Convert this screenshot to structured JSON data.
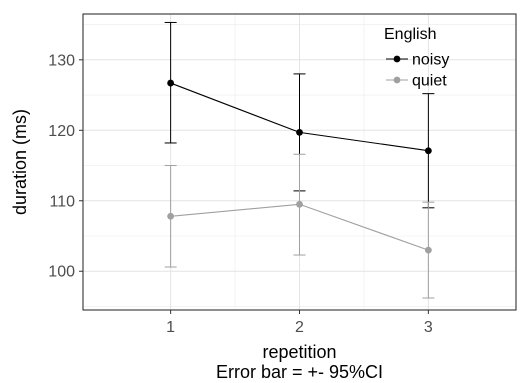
{
  "chart_data": {
    "type": "line",
    "x": [
      1,
      2,
      3
    ],
    "xlim": [
      0.32,
      3.68
    ],
    "ylim": [
      94.5,
      136.5
    ],
    "x_ticks": [
      "1",
      "2",
      "3"
    ],
    "y_ticks": [
      100,
      110,
      120,
      130
    ],
    "y_tick_labels": [
      "100",
      "110",
      "120",
      "130"
    ],
    "xlabel": "repetition",
    "xlabel2": "Error bar = +- 95%CI",
    "ylabel": "duration (ms)",
    "grid": true,
    "legend_title": "English",
    "legend_position": "top-right-inside",
    "series": [
      {
        "name": "noisy",
        "color": "#000000",
        "values": [
          126.7,
          119.7,
          117.1
        ],
        "ci_low": [
          118.2,
          111.4,
          109.0
        ],
        "ci_high": [
          135.3,
          128.0,
          125.2
        ]
      },
      {
        "name": "quiet",
        "color": "#a0a0a0",
        "values": [
          107.8,
          109.5,
          103.0
        ],
        "ci_low": [
          100.6,
          102.3,
          96.2
        ],
        "ci_high": [
          115.0,
          116.6,
          109.8
        ]
      }
    ]
  }
}
